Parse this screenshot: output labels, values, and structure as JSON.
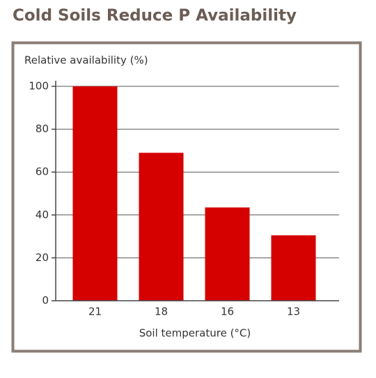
{
  "chart_data": {
    "type": "bar",
    "title": "Cold Soils Reduce P Availability",
    "y_label": "Relative availability (%)",
    "x_label": "Soil temperature (°C)",
    "categories": [
      "21",
      "18",
      "16",
      "13"
    ],
    "values": [
      100,
      69,
      43.5,
      30.5
    ],
    "color": "#d50000",
    "ylim": [
      0,
      100
    ],
    "yticks": [
      0,
      20,
      40,
      60,
      80,
      100
    ],
    "grid": true
  }
}
